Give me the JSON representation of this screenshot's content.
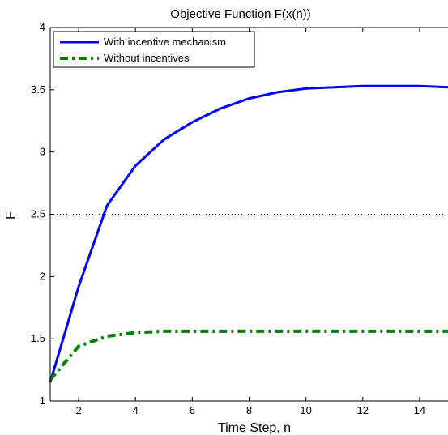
{
  "chart_data": {
    "type": "line",
    "title": "Objective Function F(x(n))",
    "xlabel": "Time Step, n",
    "ylabel": "F",
    "xlim": [
      1,
      15
    ],
    "ylim": [
      1,
      4
    ],
    "xticks": [
      2,
      4,
      6,
      8,
      10,
      12,
      14
    ],
    "yticks": [
      1,
      1.5,
      2,
      2.5,
      3,
      3.5,
      4
    ],
    "ytick_labels": [
      "1",
      "1.5",
      "2",
      "2.5",
      "3",
      "3.5",
      "4"
    ],
    "grid": false,
    "legend_position": "top-left",
    "reference_line": {
      "y": 2.5,
      "style": "dotted"
    },
    "x": [
      1,
      2,
      3,
      4,
      5,
      6,
      7,
      8,
      9,
      10,
      11,
      12,
      13,
      14,
      15
    ],
    "series": [
      {
        "name": "With incentive mechanism",
        "color": "#0000ff",
        "style": "solid",
        "values": [
          1.15,
          1.92,
          2.57,
          2.89,
          3.1,
          3.24,
          3.35,
          3.43,
          3.48,
          3.51,
          3.52,
          3.53,
          3.53,
          3.53,
          3.52
        ]
      },
      {
        "name": "Without incentives",
        "color": "#007f00",
        "style": "dashdot",
        "values": [
          1.17,
          1.44,
          1.52,
          1.55,
          1.56,
          1.56,
          1.56,
          1.56,
          1.56,
          1.56,
          1.56,
          1.56,
          1.56,
          1.56,
          1.56
        ]
      }
    ]
  }
}
